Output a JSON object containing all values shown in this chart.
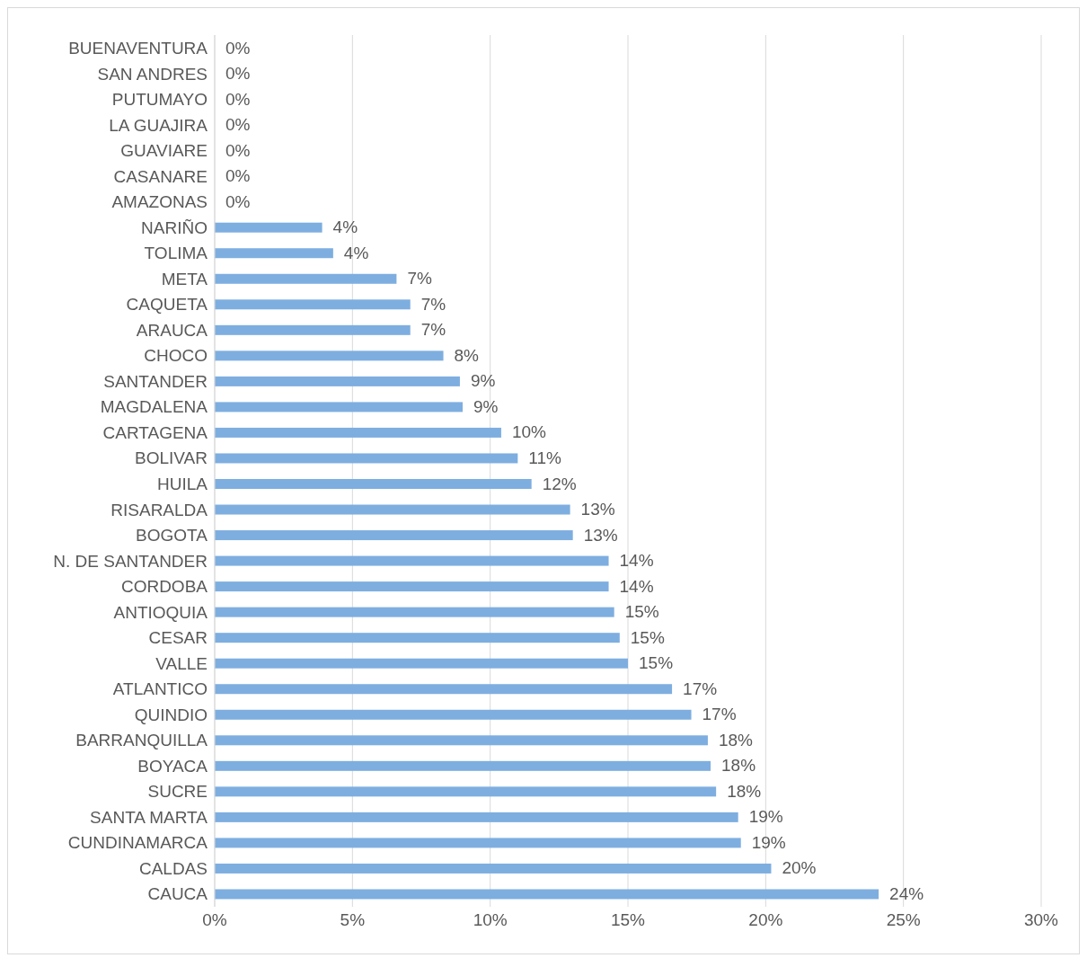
{
  "chart_data": {
    "type": "bar",
    "orientation": "horizontal",
    "categories": [
      "BUENAVENTURA",
      "SAN ANDRES",
      "PUTUMAYO",
      "LA GUAJIRA",
      "GUAVIARE",
      "CASANARE",
      "AMAZONAS",
      "NARIÑO",
      "TOLIMA",
      "META",
      "CAQUETA",
      "ARAUCA",
      "CHOCO",
      "SANTANDER",
      "MAGDALENA",
      "CARTAGENA",
      "BOLIVAR",
      "HUILA",
      "RISARALDA",
      "BOGOTA",
      "N. DE SANTANDER",
      "CORDOBA",
      "ANTIOQUIA",
      "CESAR",
      "VALLE",
      "ATLANTICO",
      "QUINDIO",
      "BARRANQUILLA",
      "BOYACA",
      "SUCRE",
      "SANTA MARTA",
      "CUNDINAMARCA",
      "CALDAS",
      "CAUCA"
    ],
    "values": [
      0,
      0,
      0,
      0,
      0,
      0,
      0,
      3.9,
      4.3,
      6.6,
      7.1,
      7.1,
      8.3,
      8.9,
      9.0,
      10.4,
      11.0,
      11.5,
      12.9,
      13.0,
      14.3,
      14.3,
      14.5,
      14.7,
      15.0,
      16.6,
      17.3,
      17.9,
      18.0,
      18.2,
      19.0,
      19.1,
      20.2,
      24.1
    ],
    "value_labels": [
      "0%",
      "0%",
      "0%",
      "0%",
      "0%",
      "0%",
      "0%",
      "4%",
      "4%",
      "7%",
      "7%",
      "7%",
      "8%",
      "9%",
      "9%",
      "10%",
      "11%",
      "12%",
      "13%",
      "13%",
      "14%",
      "14%",
      "15%",
      "15%",
      "15%",
      "17%",
      "17%",
      "18%",
      "18%",
      "18%",
      "19%",
      "19%",
      "20%",
      "24%"
    ],
    "color": "#7eaee0",
    "xlim": [
      0,
      30
    ],
    "xticks": [
      {
        "value": 0,
        "label": "0%"
      },
      {
        "value": 5,
        "label": "5%"
      },
      {
        "value": 10,
        "label": "10%"
      },
      {
        "value": 15,
        "label": "15%"
      },
      {
        "value": 20,
        "label": "20%"
      },
      {
        "value": 25,
        "label": "25%"
      },
      {
        "value": 30,
        "label": "30%"
      }
    ],
    "grid": "x",
    "legend": false
  }
}
